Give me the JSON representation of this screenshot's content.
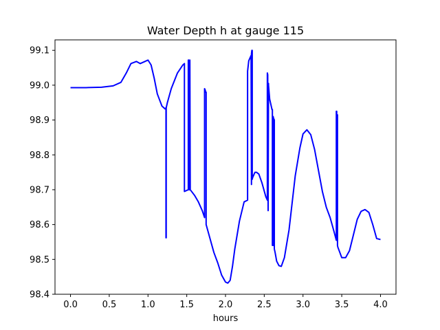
{
  "chart_data": {
    "type": "line",
    "title": "Water Depth h at gauge 115",
    "xlabel": "hours",
    "ylabel": "",
    "xlim": [
      -0.2,
      4.2
    ],
    "ylim": [
      98.4,
      99.13
    ],
    "xticks": [
      0.0,
      0.5,
      1.0,
      1.5,
      2.0,
      2.5,
      3.0,
      3.5,
      4.0
    ],
    "xtick_labels": [
      "0.0",
      "0.5",
      "1.0",
      "1.5",
      "2.0",
      "2.5",
      "3.0",
      "3.5",
      "4.0"
    ],
    "yticks": [
      98.4,
      98.5,
      98.6,
      98.7,
      98.8,
      98.9,
      99.0,
      99.1
    ],
    "ytick_labels": [
      "98.4",
      "98.5",
      "98.6",
      "98.7",
      "98.8",
      "98.9",
      "99.0",
      "99.1"
    ],
    "grid": false,
    "series": [
      {
        "color": "#0000ff",
        "x": [
          0.0,
          0.2,
          0.4,
          0.55,
          0.65,
          0.72,
          0.78,
          0.85,
          0.9,
          0.95,
          1.0,
          1.04,
          1.08,
          1.12,
          1.18,
          1.22,
          1.232,
          1.232,
          1.235,
          1.235,
          1.25,
          1.3,
          1.38,
          1.45,
          1.47,
          1.47,
          1.52,
          1.52,
          1.525,
          1.53,
          1.54,
          1.54,
          1.545,
          1.545,
          1.6,
          1.65,
          1.7,
          1.73,
          1.73,
          1.74,
          1.74,
          1.75,
          1.75,
          1.8,
          1.85,
          1.9,
          1.95,
          2.0,
          2.03,
          2.06,
          2.09,
          2.12,
          2.18,
          2.24,
          2.285,
          2.285,
          2.3,
          2.33,
          2.335,
          2.335,
          2.34,
          2.345,
          2.345,
          2.35,
          2.36,
          2.36,
          2.38,
          2.4,
          2.43,
          2.47,
          2.52,
          2.54,
          2.54,
          2.545,
          2.55,
          2.55,
          2.555,
          2.555,
          2.57,
          2.6,
          2.605,
          2.605,
          2.615,
          2.615,
          2.62,
          2.63,
          2.63,
          2.64,
          2.66,
          2.69,
          2.72,
          2.76,
          2.82,
          2.9,
          2.96,
          3.0,
          3.05,
          3.1,
          3.15,
          3.2,
          3.25,
          3.3,
          3.35,
          3.4,
          3.43,
          3.43,
          3.435,
          3.435,
          3.445,
          3.445,
          3.45,
          3.5,
          3.55,
          3.6,
          3.65,
          3.7,
          3.75,
          3.8,
          3.85,
          3.9,
          3.95,
          4.0
        ],
        "y": [
          98.993,
          98.993,
          98.994,
          98.998,
          99.008,
          99.035,
          99.062,
          99.068,
          99.062,
          99.067,
          99.072,
          99.058,
          99.02,
          98.975,
          98.94,
          98.932,
          98.935,
          98.562,
          98.562,
          98.935,
          98.95,
          98.99,
          99.035,
          99.058,
          99.062,
          98.695,
          98.7,
          99.072,
          99.072,
          98.7,
          98.7,
          99.072,
          98.7,
          98.7,
          98.684,
          98.665,
          98.64,
          98.62,
          98.99,
          98.985,
          98.98,
          98.98,
          98.6,
          98.56,
          98.52,
          98.49,
          98.455,
          98.435,
          98.432,
          98.44,
          98.48,
          98.53,
          98.61,
          98.665,
          98.67,
          99.04,
          99.07,
          99.085,
          98.715,
          99.09,
          99.1,
          99.1,
          98.73,
          98.735,
          98.74,
          98.74,
          98.75,
          98.75,
          98.745,
          98.72,
          98.68,
          98.67,
          99.035,
          99.03,
          98.64,
          98.64,
          99.005,
          99.0,
          98.96,
          98.93,
          98.93,
          98.54,
          98.54,
          98.91,
          98.905,
          98.9,
          98.53,
          98.52,
          98.495,
          98.482,
          98.48,
          98.505,
          98.585,
          98.74,
          98.82,
          98.86,
          98.872,
          98.858,
          98.815,
          98.755,
          98.695,
          98.65,
          98.62,
          98.58,
          98.555,
          98.925,
          98.925,
          98.915,
          98.915,
          98.54,
          98.535,
          98.505,
          98.505,
          98.525,
          98.57,
          98.615,
          98.638,
          98.643,
          98.635,
          98.6,
          98.56,
          98.557
        ]
      }
    ]
  }
}
